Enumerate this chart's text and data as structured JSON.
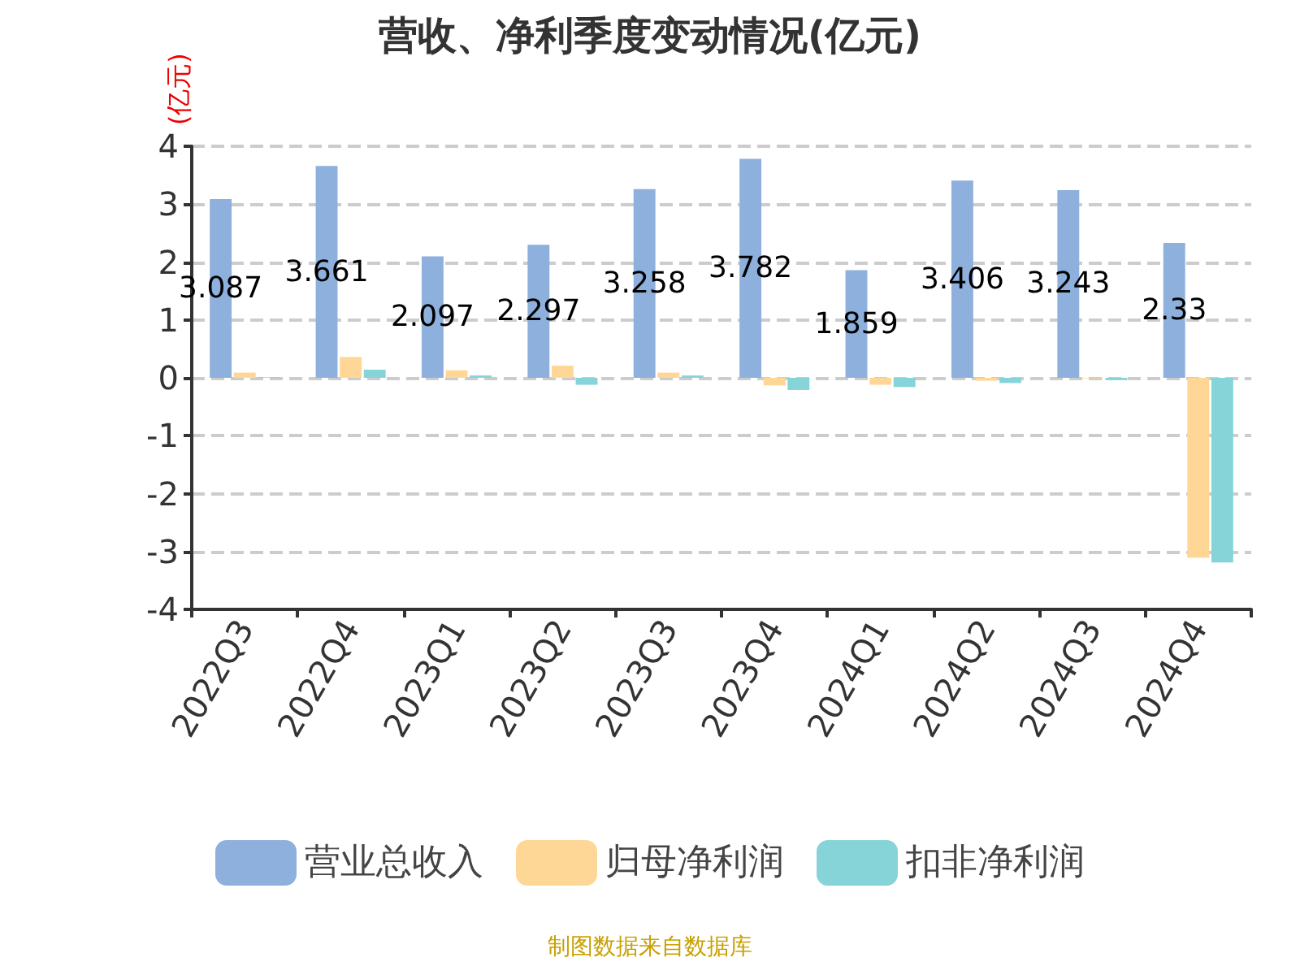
{
  "chart_data": {
    "type": "bar",
    "title": "营收、净利季度变动情况(亿元)",
    "ylabel": "(亿元)",
    "categories": [
      "2022Q3",
      "2022Q4",
      "2023Q1",
      "2023Q2",
      "2023Q3",
      "2023Q4",
      "2024Q1",
      "2024Q2",
      "2024Q3",
      "2024Q4"
    ],
    "series": [
      {
        "name": "营业总收入",
        "color": "#8eb0dc",
        "values": [
          3.087,
          3.661,
          2.097,
          2.297,
          3.258,
          3.782,
          1.859,
          3.406,
          3.243,
          2.33
        ],
        "value_labels": [
          "3.087",
          "3.661",
          "2.097",
          "2.297",
          "3.258",
          "3.782",
          "1.859",
          "3.406",
          "3.243",
          "2.33"
        ]
      },
      {
        "name": "归母净利润",
        "color": "#fed797",
        "values": [
          0.09,
          0.36,
          0.13,
          0.21,
          0.09,
          -0.13,
          -0.12,
          -0.05,
          -0.01,
          -3.11
        ]
      },
      {
        "name": "扣非净利润",
        "color": "#86d4d8",
        "values": [
          0.01,
          0.14,
          0.04,
          -0.12,
          0.04,
          -0.21,
          -0.16,
          -0.09,
          -0.04,
          -3.19
        ]
      }
    ],
    "ylim": [
      -4,
      4
    ],
    "yticks": [
      -4,
      -3,
      -2,
      -1,
      0,
      1,
      2,
      3,
      4
    ],
    "grid": "y",
    "legend": "bottom",
    "annotations": [
      "制图数据来自数据库"
    ]
  }
}
